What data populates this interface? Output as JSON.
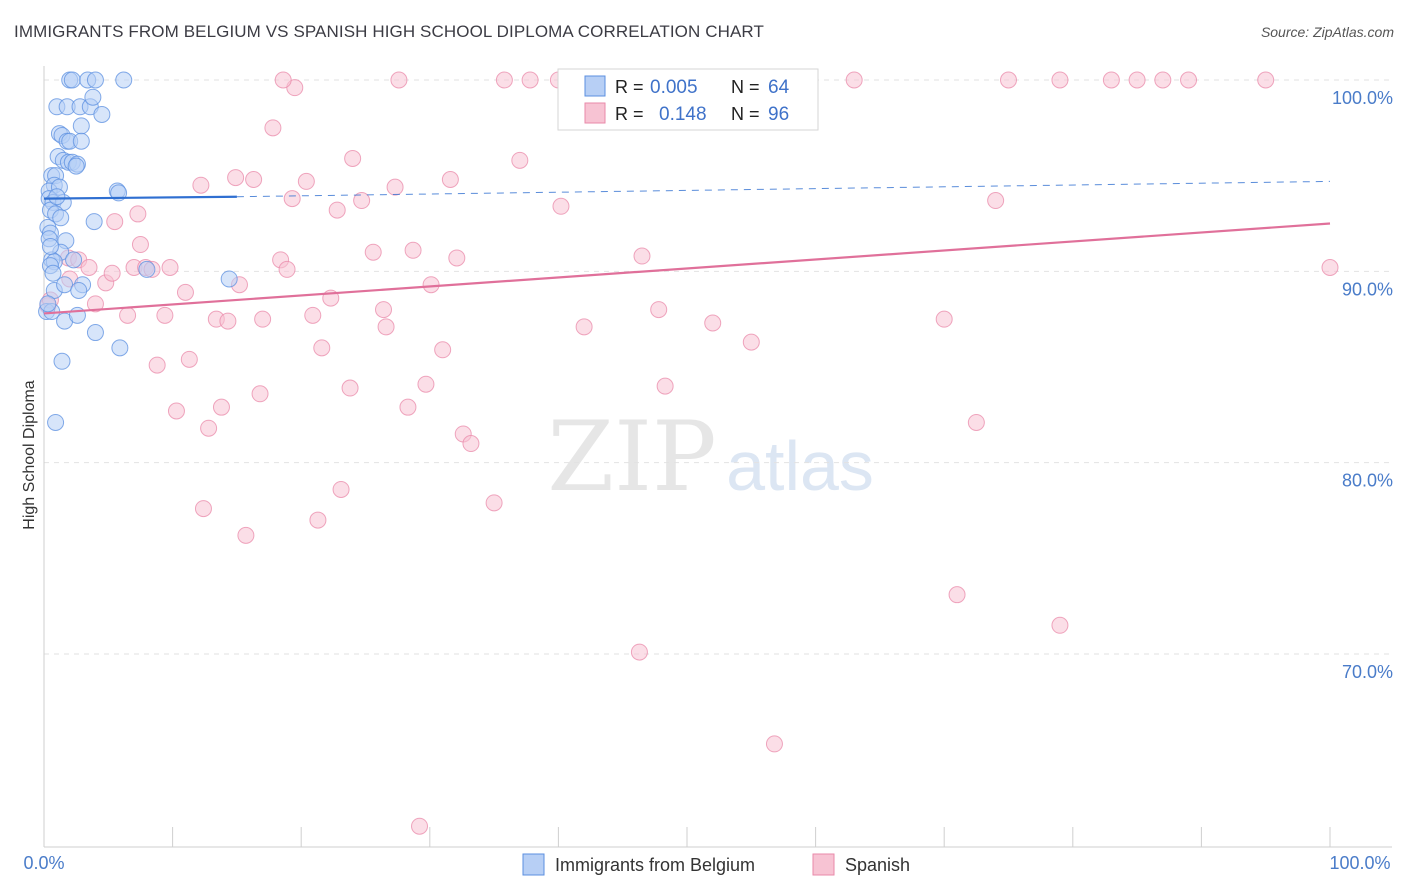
{
  "header": {
    "title": "IMMIGRANTS FROM BELGIUM VS SPANISH HIGH SCHOOL DIPLOMA CORRELATION CHART",
    "source": "Source: ZipAtlas.com"
  },
  "watermark": {
    "zip": "ZIP",
    "atlas": "atlas"
  },
  "colors": {
    "blue_fill": "#b7cff5",
    "blue_stroke": "#5b8fe0",
    "blue_line": "#2f6fd1",
    "pink_fill": "#f7c3d3",
    "pink_stroke": "#e98aa9",
    "pink_line": "#e0709a",
    "tick_label": "#4a7cc9",
    "grid": "#e2e2e2"
  },
  "chart_data": {
    "type": "scatter",
    "title": "IMMIGRANTS FROM BELGIUM VS SPANISH HIGH SCHOOL DIPLOMA CORRELATION CHART",
    "xlabel": "",
    "ylabel": "High School Diploma",
    "xlim": [
      0,
      100
    ],
    "ylim": [
      60.2,
      102
    ],
    "x_tick_labels": {
      "min": "0.0%",
      "max": "100.0%"
    },
    "y_ticks": [
      {
        "value": 100,
        "label": "100.0%"
      },
      {
        "value": 90,
        "label": "90.0%"
      },
      {
        "value": 80,
        "label": "80.0%"
      },
      {
        "value": 70,
        "label": "70.0%"
      }
    ],
    "x_minor_ticks": [
      10,
      20,
      30,
      40,
      50,
      60,
      70,
      80,
      90,
      100
    ],
    "legend": {
      "position": "top-center",
      "entries": [
        {
          "r_label": "R =",
          "r_value": "0.005",
          "n_label": "N =",
          "n_value": "64"
        },
        {
          "r_label": "R =",
          "r_value": "0.148",
          "n_label": "N =",
          "n_value": "96"
        }
      ]
    },
    "bottom_legend": [
      "Immigrants from Belgium",
      "Spanish"
    ],
    "series": [
      {
        "name": "Immigrants from Belgium",
        "trend": {
          "x0": 0,
          "y0": 93.8,
          "x1": 15,
          "y1": 93.9,
          "x_dashed_end": 100,
          "y_dashed_end": 94.7
        },
        "points": [
          [
            2.0,
            100
          ],
          [
            2.2,
            100
          ],
          [
            3.4,
            100
          ],
          [
            4.0,
            100
          ],
          [
            6.2,
            100
          ],
          [
            1.0,
            98.6
          ],
          [
            1.8,
            98.6
          ],
          [
            2.8,
            98.6
          ],
          [
            3.6,
            98.6
          ],
          [
            3.8,
            99.1
          ],
          [
            4.5,
            98.2
          ],
          [
            2.9,
            97.6
          ],
          [
            1.2,
            97.2
          ],
          [
            1.4,
            97.1
          ],
          [
            1.8,
            96.8
          ],
          [
            2.0,
            96.8
          ],
          [
            2.9,
            96.8
          ],
          [
            1.1,
            96.0
          ],
          [
            1.5,
            95.8
          ],
          [
            1.9,
            95.7
          ],
          [
            2.2,
            95.7
          ],
          [
            2.6,
            95.6
          ],
          [
            0.6,
            95.0
          ],
          [
            0.9,
            95.0
          ],
          [
            0.8,
            94.5
          ],
          [
            0.4,
            94.2
          ],
          [
            1.2,
            94.4
          ],
          [
            5.7,
            94.2
          ],
          [
            5.8,
            94.1
          ],
          [
            0.4,
            93.8
          ],
          [
            0.7,
            93.6
          ],
          [
            1.5,
            93.6
          ],
          [
            0.5,
            93.2
          ],
          [
            0.9,
            93.0
          ],
          [
            3.9,
            92.6
          ],
          [
            0.3,
            92.3
          ],
          [
            0.5,
            92.0
          ],
          [
            0.4,
            91.7
          ],
          [
            1.7,
            91.6
          ],
          [
            1.3,
            91.0
          ],
          [
            0.6,
            90.6
          ],
          [
            0.8,
            90.5
          ],
          [
            2.3,
            90.6
          ],
          [
            0.5,
            90.3
          ],
          [
            8.0,
            90.1
          ],
          [
            14.4,
            89.6
          ],
          [
            0.8,
            89.0
          ],
          [
            1.6,
            89.3
          ],
          [
            3.0,
            89.3
          ],
          [
            2.7,
            89.0
          ],
          [
            0.2,
            87.9
          ],
          [
            0.6,
            87.9
          ],
          [
            1.6,
            87.4
          ],
          [
            2.6,
            87.7
          ],
          [
            4.0,
            86.8
          ],
          [
            5.9,
            86.0
          ],
          [
            1.4,
            85.3
          ],
          [
            0.9,
            82.1
          ],
          [
            0.3,
            88.3
          ],
          [
            0.5,
            91.3
          ],
          [
            1.0,
            93.9
          ],
          [
            2.5,
            95.5
          ],
          [
            1.3,
            92.8
          ],
          [
            0.7,
            89.9
          ]
        ]
      },
      {
        "name": "Spanish",
        "trend": {
          "x0": 0,
          "y0": 87.8,
          "x1": 100,
          "y1": 92.5
        },
        "points": [
          [
            0.3,
            88.2
          ],
          [
            0.5,
            88.5
          ],
          [
            2.0,
            89.6
          ],
          [
            1.9,
            90.7
          ],
          [
            2.7,
            90.6
          ],
          [
            3.5,
            90.2
          ],
          [
            4.0,
            88.3
          ],
          [
            4.8,
            89.4
          ],
          [
            5.3,
            89.9
          ],
          [
            5.5,
            92.6
          ],
          [
            6.5,
            87.7
          ],
          [
            7.0,
            90.2
          ],
          [
            7.5,
            91.4
          ],
          [
            7.9,
            90.2
          ],
          [
            8.4,
            90.1
          ],
          [
            8.8,
            85.1
          ],
          [
            9.4,
            87.7
          ],
          [
            9.8,
            90.2
          ],
          [
            10.3,
            82.7
          ],
          [
            11.0,
            88.9
          ],
          [
            11.3,
            85.4
          ],
          [
            12.2,
            94.5
          ],
          [
            12.4,
            77.6
          ],
          [
            12.8,
            81.8
          ],
          [
            13.4,
            87.5
          ],
          [
            13.8,
            82.9
          ],
          [
            14.3,
            87.4
          ],
          [
            14.9,
            94.9
          ],
          [
            15.2,
            89.3
          ],
          [
            15.7,
            76.2
          ],
          [
            16.3,
            94.8
          ],
          [
            17.0,
            87.5
          ],
          [
            16.8,
            83.6
          ],
          [
            17.8,
            97.5
          ],
          [
            18.4,
            90.6
          ],
          [
            18.9,
            90.1
          ],
          [
            19.3,
            93.8
          ],
          [
            19.5,
            99.6
          ],
          [
            20.4,
            94.7
          ],
          [
            20.9,
            87.7
          ],
          [
            21.3,
            77.0
          ],
          [
            21.6,
            86.0
          ],
          [
            22.3,
            88.6
          ],
          [
            22.8,
            93.2
          ],
          [
            23.1,
            78.6
          ],
          [
            23.8,
            83.9
          ],
          [
            24.0,
            95.9
          ],
          [
            24.7,
            93.7
          ],
          [
            25.6,
            91.0
          ],
          [
            26.4,
            88.0
          ],
          [
            26.6,
            87.1
          ],
          [
            27.3,
            94.4
          ],
          [
            27.6,
            100
          ],
          [
            28.3,
            82.9
          ],
          [
            28.7,
            91.1
          ],
          [
            29.2,
            61.0
          ],
          [
            29.7,
            84.1
          ],
          [
            30.1,
            89.3
          ],
          [
            31.0,
            85.9
          ],
          [
            31.6,
            94.8
          ],
          [
            32.1,
            90.7
          ],
          [
            32.6,
            81.5
          ],
          [
            33.2,
            81.0
          ],
          [
            35.0,
            77.9
          ],
          [
            35.8,
            100
          ],
          [
            37.0,
            95.8
          ],
          [
            37.8,
            100
          ],
          [
            40.0,
            100
          ],
          [
            40.2,
            93.4
          ],
          [
            42.0,
            87.1
          ],
          [
            46.3,
            70.1
          ],
          [
            46.5,
            90.8
          ],
          [
            47.8,
            88.0
          ],
          [
            48.3,
            84.0
          ],
          [
            52.0,
            87.3
          ],
          [
            52.5,
            100
          ],
          [
            55.0,
            86.3
          ],
          [
            56.5,
            100
          ],
          [
            56.8,
            65.3
          ],
          [
            63.0,
            100
          ],
          [
            70.0,
            87.5
          ],
          [
            71.0,
            73.1
          ],
          [
            72.5,
            82.1
          ],
          [
            74.0,
            93.7
          ],
          [
            75.0,
            100
          ],
          [
            79.0,
            100
          ],
          [
            79.0,
            71.5
          ],
          [
            83.0,
            100
          ],
          [
            85.0,
            100
          ],
          [
            87.0,
            100
          ],
          [
            89.0,
            100
          ],
          [
            95.0,
            100
          ],
          [
            100,
            90.2
          ],
          [
            18.6,
            100
          ],
          [
            54.0,
            100
          ],
          [
            7.3,
            93.0
          ]
        ]
      }
    ]
  }
}
